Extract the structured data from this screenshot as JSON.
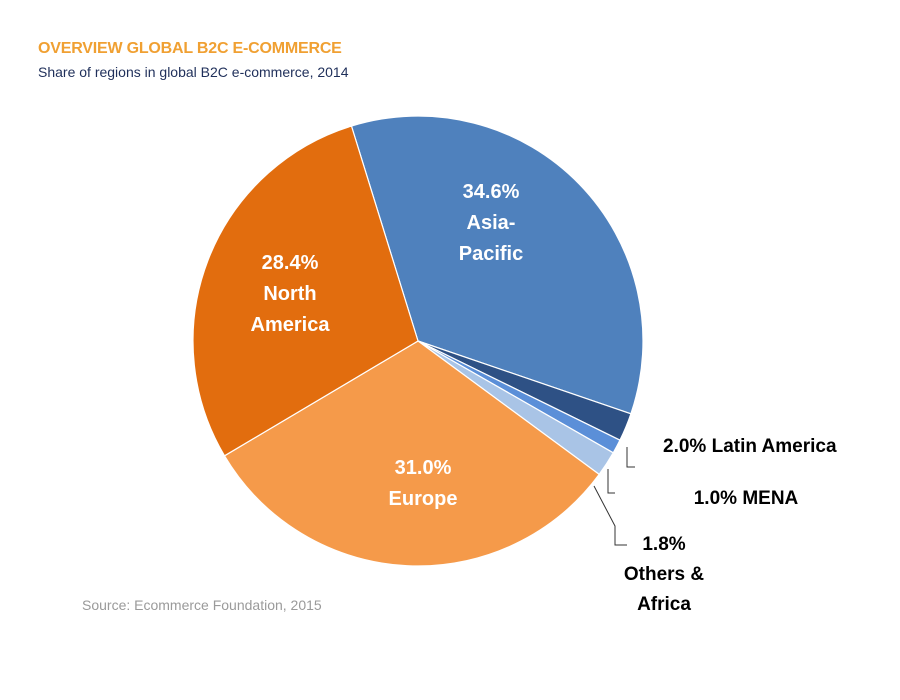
{
  "header": {
    "title": "OVERVIEW GLOBAL B2C E-COMMERCE",
    "subtitle": "Share of regions in global B2C e-commerce, 2014"
  },
  "footer": {
    "source": "Source: Ecommerce Foundation, 2015"
  },
  "colors": {
    "title": "#f0a032",
    "subtitle": "#1f2f5a",
    "source": "#9a9a9a"
  },
  "chart_data": {
    "type": "pie",
    "title": "OVERVIEW GLOBAL B2C E-COMMERCE",
    "subtitle": "Share of regions in global B2C e-commerce, 2014",
    "unit": "%",
    "slices": [
      {
        "name": "Asia-Pacific",
        "value": 34.6,
        "color": "#4f81bd",
        "label_lines": [
          "34.6%",
          "Asia-",
          "Pacific"
        ],
        "label_style": "inside"
      },
      {
        "name": "Latin America",
        "value": 2.0,
        "color": "#2e5185",
        "label_lines": [
          "2.0% Latin America"
        ],
        "label_style": "callout"
      },
      {
        "name": "MENA",
        "value": 1.0,
        "color": "#5b8fd8",
        "label_lines": [
          "1.0% MENA"
        ],
        "label_style": "callout"
      },
      {
        "name": "Others & Africa",
        "value": 1.8,
        "color": "#a9c4e6",
        "label_lines": [
          "1.8%",
          "Others &",
          "Africa"
        ],
        "label_style": "callout"
      },
      {
        "name": "Europe",
        "value": 31.0,
        "color": "#f59a4a",
        "label_lines": [
          "31.0%",
          "Europe"
        ],
        "label_style": "inside"
      },
      {
        "name": "North America",
        "value": 28.4,
        "color": "#e26d0e",
        "label_lines": [
          "28.4%",
          "North",
          "America"
        ],
        "label_style": "inside"
      }
    ],
    "legend": "none"
  }
}
